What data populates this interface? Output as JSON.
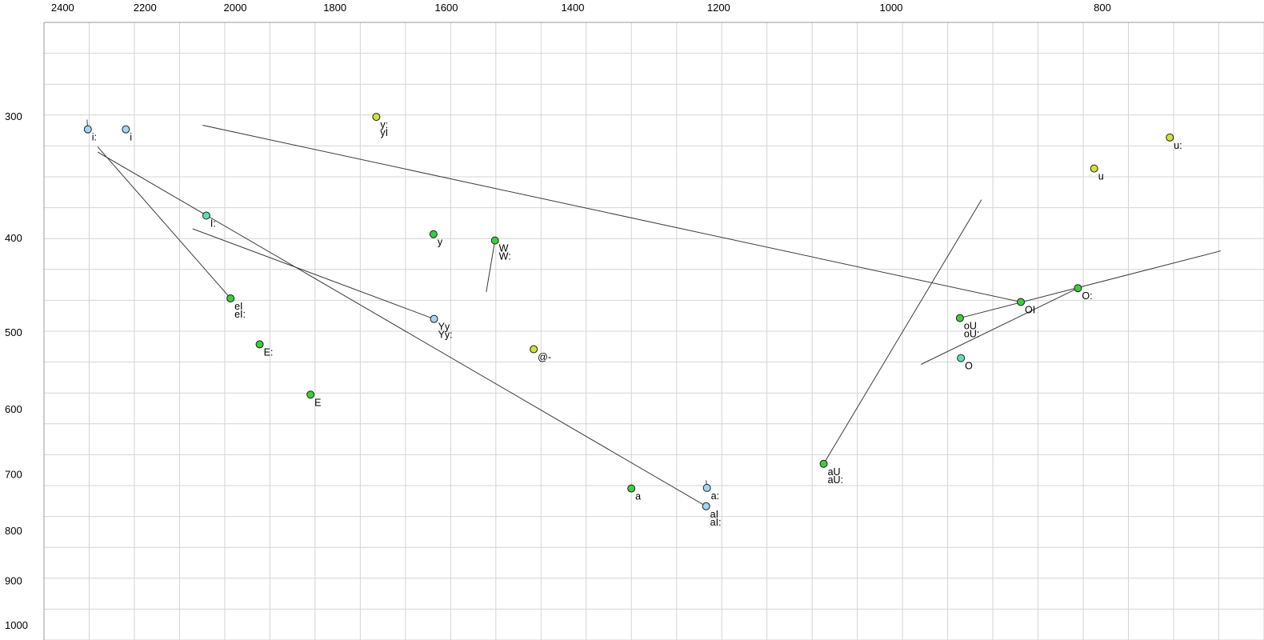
{
  "chart_data": {
    "type": "scatter",
    "title": "",
    "xlabel": "",
    "ylabel": "",
    "description": "Vowel formant plot (F2 horizontal reversed log scale, F1 vertical log scale increasing downward) with diphthong trajectory lines",
    "x_axis": {
      "scale": "log",
      "reversed": true,
      "range": [
        2450,
        690
      ],
      "ticks": [
        "2400",
        "2200",
        "2000",
        "1800",
        "1600",
        "1400",
        "1200",
        "1000",
        "800"
      ],
      "tick_values": [
        2400,
        2200,
        2000,
        1800,
        1600,
        1400,
        1200,
        1000,
        800
      ]
    },
    "y_axis": {
      "scale": "log",
      "increases_downward": true,
      "range": [
        240,
        1030
      ],
      "ticks": [
        "300",
        "400",
        "500",
        "600",
        "700",
        "800",
        "900",
        "1000"
      ],
      "tick_values": [
        300,
        400,
        500,
        600,
        700,
        800,
        900,
        1000
      ]
    },
    "grid": "on",
    "legend": "none",
    "points": [
      {
        "labels": [
          "i:"
        ],
        "f2": 2337,
        "f1": 309,
        "color": "blue"
      },
      {
        "labels": [
          "i"
        ],
        "f2": 2245,
        "f1": 309,
        "color": "blue"
      },
      {
        "labels": [
          "I:"
        ],
        "f2": 2062,
        "f1": 379,
        "color": "teal"
      },
      {
        "labels": [
          "y:",
          "yI"
        ],
        "f2": 1723,
        "f1": 300,
        "color": "yellow"
      },
      {
        "labels": [
          "y"
        ],
        "f2": 1622,
        "f1": 396,
        "color": "green"
      },
      {
        "labels": [
          "W",
          "W:"
        ],
        "f2": 1520,
        "f1": 402,
        "color": "green"
      },
      {
        "labels": [
          "Yy",
          "Yy:"
        ],
        "f2": 1621,
        "f1": 484,
        "color": "blue"
      },
      {
        "labels": [
          "@-"
        ],
        "f2": 1459,
        "f1": 520,
        "color": "yellow"
      },
      {
        "labels": [
          "E:"
        ],
        "f2": 1949,
        "f1": 514,
        "color": "green"
      },
      {
        "labels": [
          "E"
        ],
        "f2": 1847,
        "f1": 579,
        "color": "green"
      },
      {
        "labels": [
          "eI",
          "eI:"
        ],
        "f2": 2010,
        "f1": 461,
        "color": "green"
      },
      {
        "labels": [
          "a"
        ],
        "f2": 1316,
        "f1": 723,
        "color": "green"
      },
      {
        "labels": [
          "a:"
        ],
        "f2": 1215,
        "f1": 722,
        "color": "blue"
      },
      {
        "labels": [
          "aI",
          "aI:"
        ],
        "f2": 1216,
        "f1": 754,
        "color": "blue"
      },
      {
        "labels": [
          "aU",
          "aU:"
        ],
        "f2": 1074,
        "f1": 682,
        "color": "green"
      },
      {
        "labels": [
          "OI"
        ],
        "f2": 872,
        "f1": 465,
        "color": "green"
      },
      {
        "labels": [
          "O:"
        ],
        "f2": 821,
        "f1": 450,
        "color": "green"
      },
      {
        "labels": [
          "oU",
          "oU:"
        ],
        "f2": 930,
        "f1": 483,
        "color": "green"
      },
      {
        "labels": [
          "O"
        ],
        "f2": 929,
        "f1": 531,
        "color": "teal"
      },
      {
        "labels": [
          "u:"
        ],
        "f2": 745,
        "f1": 315,
        "color": "yellow"
      },
      {
        "labels": [
          "u"
        ],
        "f2": 807,
        "f1": 339,
        "color": "yellow"
      }
    ],
    "trajectories": [
      {
        "name": "i-long-glide",
        "from": {
          "f2": 2337,
          "f1": 309
        },
        "to": {
          "f2": 2339,
          "f1": 302
        }
      },
      {
        "name": "a-long-glide",
        "from": {
          "f2": 1215,
          "f1": 722
        },
        "to": {
          "f2": 1216,
          "f1": 709
        }
      },
      {
        "name": "eI-glide",
        "from": {
          "f2": 2010,
          "f1": 461
        },
        "to": {
          "f2": 2313,
          "f1": 322
        }
      },
      {
        "name": "aI-glide",
        "from": {
          "f2": 1216,
          "f1": 754
        },
        "to": {
          "f2": 2313,
          "f1": 326
        }
      },
      {
        "name": "Yy-glide",
        "from": {
          "f2": 1621,
          "f1": 484
        },
        "to": {
          "f2": 2092,
          "f1": 391
        }
      },
      {
        "name": "OI-glide",
        "from": {
          "f2": 872,
          "f1": 465
        },
        "to": {
          "f2": 2070,
          "f1": 306
        }
      },
      {
        "name": "W-glide",
        "from": {
          "f2": 1520,
          "f1": 402
        },
        "to": {
          "f2": 1534,
          "f1": 454
        }
      },
      {
        "name": "aU-glide",
        "from": {
          "f2": 1074,
          "f1": 682
        },
        "to": {
          "f2": 909,
          "f1": 365
        }
      },
      {
        "name": "oU-glide",
        "from": {
          "f2": 930,
          "f1": 483
        },
        "to": {
          "f2": 706,
          "f1": 412
        }
      },
      {
        "name": "O-glide",
        "from": {
          "f2": 969,
          "f1": 539
        },
        "to": {
          "f2": 821,
          "f1": 450
        }
      }
    ],
    "colors": {
      "background": "#ffffff",
      "grid": "#d4d4d4",
      "axis_border": "#9a9a9a",
      "trajectory": "#3c3c3c",
      "point_stroke": "#1f1f1f",
      "blue": "#a5d5f0",
      "green": "#3dcc3d",
      "yellow": "#d2e135",
      "teal": "#5fddb8"
    }
  }
}
